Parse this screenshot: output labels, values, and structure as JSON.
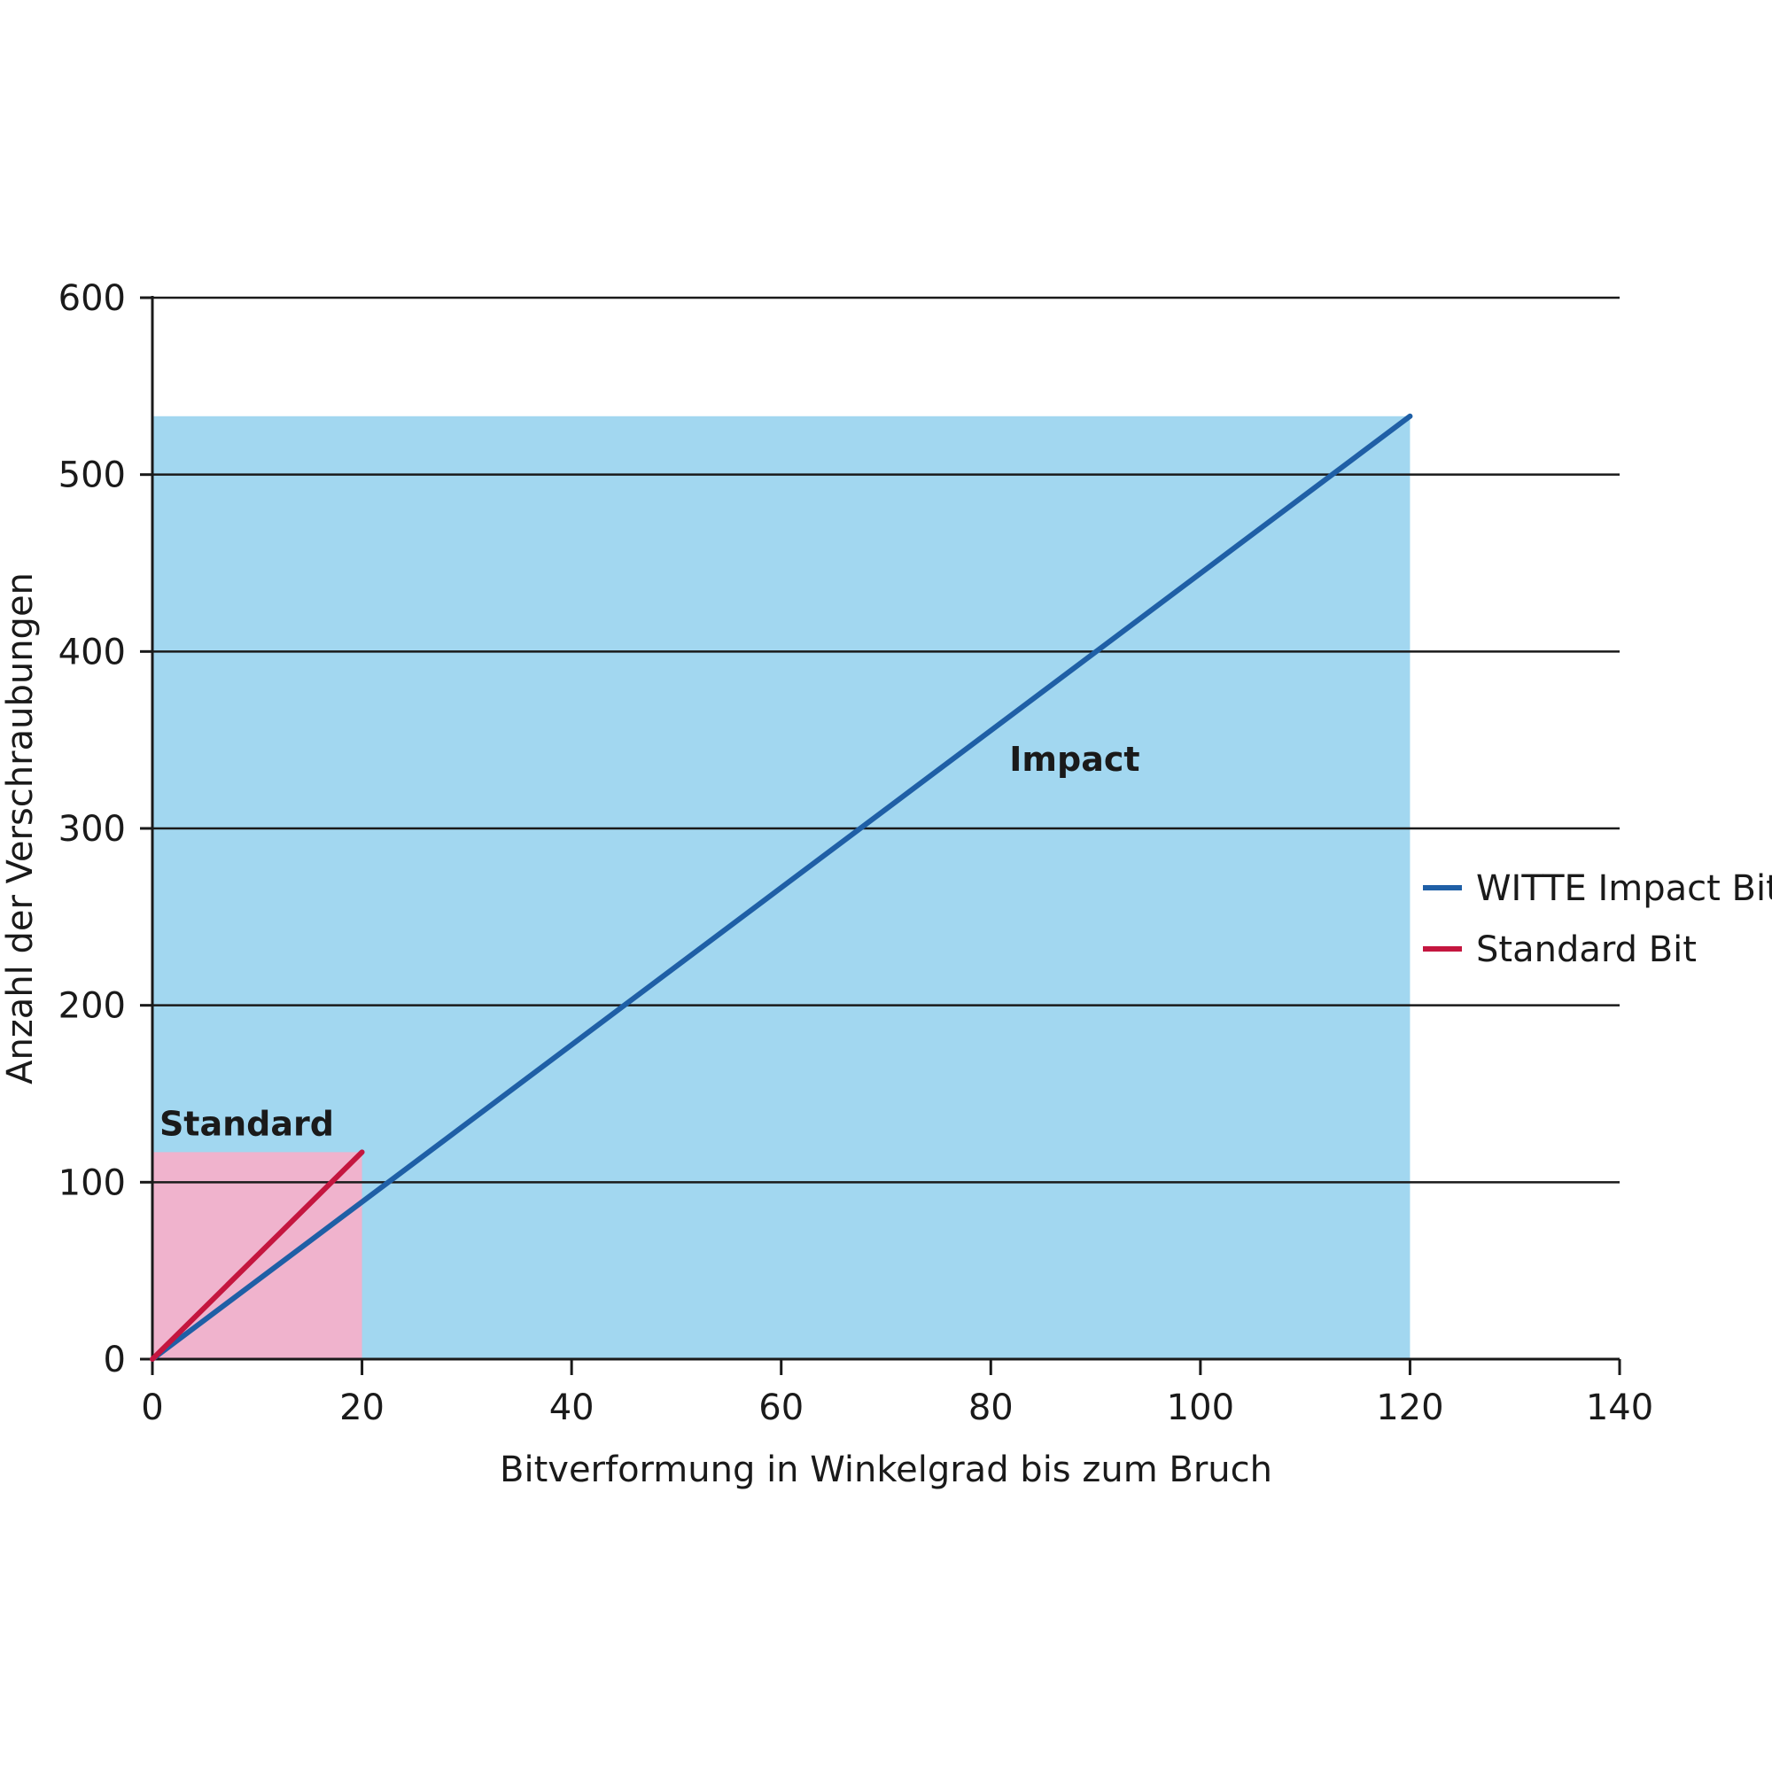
{
  "chart_data": {
    "type": "line",
    "title": "",
    "xlabel": "Bitverformung in Winkelgrad bis zum Bruch",
    "ylabel": "Anzahl der Verschraubungen",
    "xlim": [
      0,
      140
    ],
    "ylim": [
      0,
      600
    ],
    "x_ticks": [
      "0",
      "20",
      "40",
      "60",
      "80",
      "100",
      "120",
      "140"
    ],
    "y_ticks": [
      "0",
      "100",
      "200",
      "300",
      "400",
      "500",
      "600"
    ],
    "grid": "horizontal",
    "legend_position": "right",
    "series": [
      {
        "name": "WITTE Impact Bit",
        "color": "#1f5fa6",
        "x": [
          0,
          120
        ],
        "y": [
          0,
          533
        ]
      },
      {
        "name": "Standard Bit",
        "color": "#c4163f",
        "x": [
          0,
          20
        ],
        "y": [
          0,
          117
        ]
      }
    ],
    "areas": [
      {
        "label": "Impact",
        "color": "#a2d7f0",
        "x": [
          0,
          120
        ],
        "y": [
          0,
          533
        ],
        "label_at": [
          88,
          339
        ]
      },
      {
        "label": "Standard",
        "color": "#f0b3cd",
        "x": [
          0,
          20
        ],
        "y": [
          0,
          117
        ],
        "label_at": [
          9,
          133
        ]
      }
    ]
  }
}
